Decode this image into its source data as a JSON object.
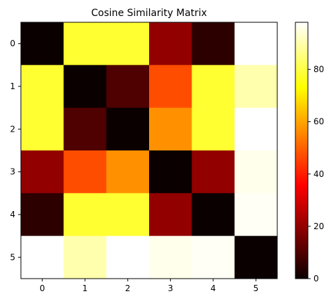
{
  "chart_data": {
    "type": "heatmap",
    "title": "Cosine Similarity Matrix",
    "xlabel": "",
    "ylabel": "",
    "x_ticks": [
      "0",
      "1",
      "2",
      "3",
      "4",
      "5"
    ],
    "y_ticks": [
      "0",
      "1",
      "2",
      "3",
      "4",
      "5"
    ],
    "values": [
      [
        0,
        78,
        78,
        20,
        5,
        98
      ],
      [
        78,
        0,
        10,
        47,
        78,
        90
      ],
      [
        78,
        10,
        0,
        57,
        78,
        98
      ],
      [
        20,
        47,
        57,
        0,
        20,
        96
      ],
      [
        5,
        78,
        78,
        20,
        0,
        97
      ],
      [
        98,
        90,
        98,
        96,
        97,
        0
      ]
    ],
    "colormap": "hot",
    "vmin": 0,
    "vmax": 98,
    "colorbar": {
      "ticks": [
        0,
        20,
        40,
        60,
        80
      ],
      "labels": [
        "0",
        "20",
        "40",
        "60",
        "80"
      ]
    },
    "grid": false
  }
}
